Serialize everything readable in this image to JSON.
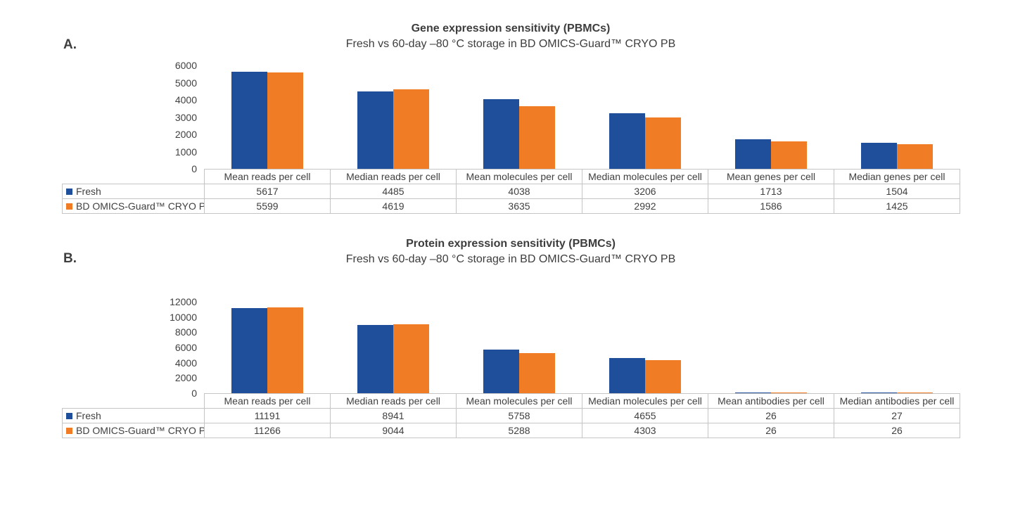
{
  "page": {
    "background": "#ffffff"
  },
  "colors": {
    "fresh_blue": "#1F4E9B",
    "cryo_orange": "#F07D26",
    "text": "#404040",
    "table_border": "#C5C5C5"
  },
  "chart_data": [
    {
      "type": "bar",
      "panel_label": "A.",
      "title": "Gene expression sensitivity (PBMCs)",
      "subtitle": "Fresh vs 60-day –80 °C storage in BD OMICS-Guard™ CRYO PB",
      "categories": [
        "Mean reads per cell",
        "Median reads per cell",
        "Mean molecules per cell",
        "Median molecules per cell",
        "Mean genes per cell",
        "Median genes per cell"
      ],
      "series": [
        {
          "name": "Fresh",
          "color": "#1F4E9B",
          "values": [
            5617,
            4485,
            4038,
            3206,
            1713,
            1504
          ]
        },
        {
          "name": "BD OMICS-Guard™ CRYO PB",
          "color": "#F07D26",
          "values": [
            5599,
            4619,
            3635,
            2992,
            1586,
            1425
          ]
        }
      ],
      "xlabel": "",
      "ylabel": "",
      "ylim": [
        0,
        6000
      ],
      "yticks": [
        0,
        1000,
        2000,
        3000,
        4000,
        5000,
        6000
      ],
      "grid": false,
      "legend_position": "table-left",
      "data_table_shown": true
    },
    {
      "type": "bar",
      "panel_label": "B.",
      "title": "Protein expression sensitivity (PBMCs)",
      "subtitle": "Fresh vs 60-day –80 °C storage in BD OMICS-Guard™ CRYO PB",
      "categories": [
        "Mean reads per cell",
        "Median reads per cell",
        "Mean molecules per cell",
        "Median molecules per cell",
        "Mean antibodies per cell",
        "Median antibodies per cell"
      ],
      "series": [
        {
          "name": "Fresh",
          "color": "#1F4E9B",
          "values": [
            11191,
            8941,
            5758,
            4655,
            26,
            27
          ]
        },
        {
          "name": "BD OMICS-Guard™ CRYO PB",
          "color": "#F07D26",
          "values": [
            11266,
            9044,
            5288,
            4303,
            26,
            26
          ]
        }
      ],
      "xlabel": "",
      "ylabel": "",
      "ylim": [
        0,
        12000
      ],
      "yticks": [
        0,
        2000,
        4000,
        6000,
        8000,
        10000,
        12000
      ],
      "grid": false,
      "legend_position": "table-left",
      "data_table_shown": true
    }
  ]
}
